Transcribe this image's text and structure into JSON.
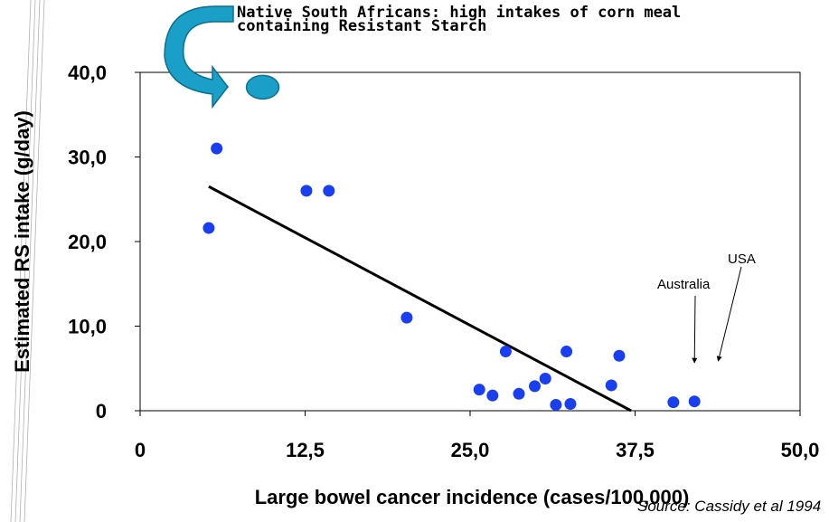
{
  "chart_data": {
    "type": "scatter",
    "title": "Native South Africans: high intakes of corn meal containing Resistant Starch",
    "title_lines": [
      "Native South Africans: high intakes of corn meal",
      "containing Resistant Starch"
    ],
    "xlabel": "Large bowel cancer incidence (cases/100,000)",
    "ylabel": "Estimated RS intake (g/day)",
    "xlim": [
      0,
      50
    ],
    "ylim": [
      0,
      40
    ],
    "x_ticks": [
      0,
      12.5,
      25,
      37.5,
      50
    ],
    "x_tick_labels": [
      "0",
      "12,5",
      "25,0",
      "37,5",
      "50,0"
    ],
    "y_ticks": [
      0,
      10,
      20,
      30,
      40
    ],
    "y_tick_labels": [
      "0",
      "10,0",
      "20,0",
      "30,0",
      "40,0"
    ],
    "grid": false,
    "legend": "none",
    "colors": {
      "points": "#1a3ff0",
      "trend": "#000000",
      "callout": "#1aa0c8"
    },
    "series": [
      {
        "points": [
          [
            5.2,
            21.6
          ],
          [
            5.8,
            31.0
          ],
          [
            12.6,
            26.0
          ],
          [
            14.3,
            26.0
          ],
          [
            20.2,
            11.0
          ],
          [
            25.7,
            2.5
          ],
          [
            26.7,
            1.8
          ],
          [
            27.7,
            7.0
          ],
          [
            28.7,
            2.0
          ],
          [
            29.9,
            2.9
          ],
          [
            30.7,
            3.8
          ],
          [
            31.5,
            0.7
          ],
          [
            32.3,
            7.0
          ],
          [
            32.6,
            0.8
          ],
          [
            35.7,
            3.0
          ],
          [
            36.3,
            6.5
          ],
          [
            40.4,
            1.0
          ],
          [
            42.0,
            1.1
          ]
        ]
      }
    ],
    "trendline": {
      "x": [
        5.2,
        37.2
      ],
      "y": [
        26.5,
        0
      ]
    },
    "annotations": [
      {
        "text": "Australia",
        "target": [
          42.0,
          5.7
        ]
      },
      {
        "text": "USA",
        "target": [
          43.8,
          5.9
        ]
      }
    ],
    "highlight_callout": {
      "target_x": 8.6,
      "target_y": 37.5
    },
    "source": "Source: Cassidy et al 1994"
  }
}
